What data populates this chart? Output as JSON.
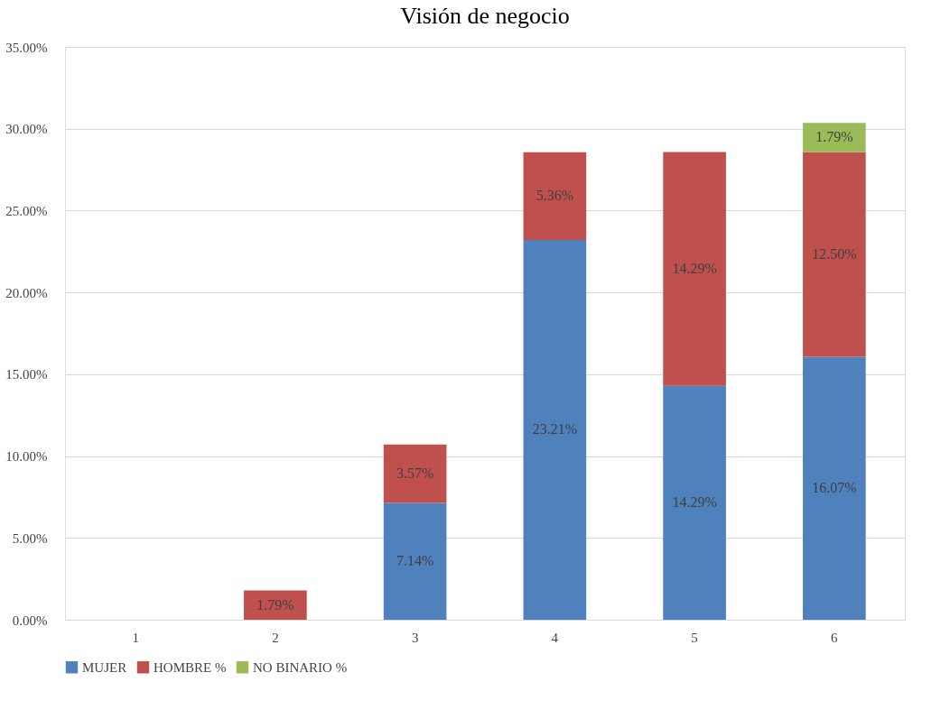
{
  "chart_data": {
    "type": "bar",
    "title": "Visión de negocio",
    "stacked": true,
    "categories": [
      "1",
      "2",
      "3",
      "4",
      "5",
      "6"
    ],
    "series": [
      {
        "name": "MUJER",
        "color": "#4f81bd",
        "values": [
          null,
          null,
          7.14,
          23.21,
          14.29,
          16.07
        ],
        "value_labels": [
          null,
          null,
          "7.14%",
          "23.21%",
          "14.29%",
          "16.07%"
        ]
      },
      {
        "name": "HOMBRE %",
        "color": "#c0504d",
        "values": [
          null,
          1.79,
          3.57,
          5.36,
          14.29,
          12.5
        ],
        "value_labels": [
          null,
          "1.79%",
          "3.57%",
          "5.36%",
          "14.29%",
          "12.50%"
        ]
      },
      {
        "name": "NO BINARIO %",
        "color": "#9bbb59",
        "values": [
          null,
          null,
          null,
          null,
          null,
          1.79
        ],
        "value_labels": [
          null,
          null,
          null,
          null,
          null,
          "1.79%"
        ]
      }
    ],
    "ylim": [
      0,
      35
    ],
    "yticks": [
      {
        "value": 0,
        "label": "0.00%"
      },
      {
        "value": 5,
        "label": "5.00%"
      },
      {
        "value": 10,
        "label": "10.00%"
      },
      {
        "value": 15,
        "label": "15.00%"
      },
      {
        "value": 20,
        "label": "20.00%"
      },
      {
        "value": 25,
        "label": "25.00%"
      },
      {
        "value": 30,
        "label": "30.00%"
      },
      {
        "value": 35,
        "label": "35.00%"
      }
    ],
    "grid": "y",
    "legend": "bottom"
  }
}
